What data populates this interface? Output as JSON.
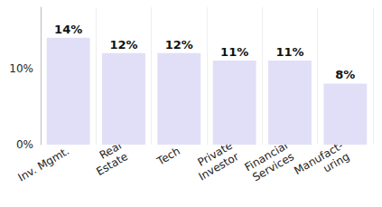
{
  "chart_data": {
    "type": "bar",
    "categories": [
      "Inv. Mgmt.",
      "Real\nEstate",
      "Tech",
      "Private\nInvestor",
      "Financial\nServices",
      "Manufact-\nuring"
    ],
    "values": [
      14,
      12,
      12,
      11,
      11,
      8
    ],
    "value_labels": [
      "14%",
      "12%",
      "12%",
      "11%",
      "11%",
      "8%"
    ],
    "data_labels": true,
    "color": "#e0dff7",
    "ylim": [
      0,
      18
    ],
    "yticks": [
      {
        "value": 0,
        "label": "0%"
      },
      {
        "value": 10,
        "label": "10%"
      }
    ],
    "grid": true
  }
}
